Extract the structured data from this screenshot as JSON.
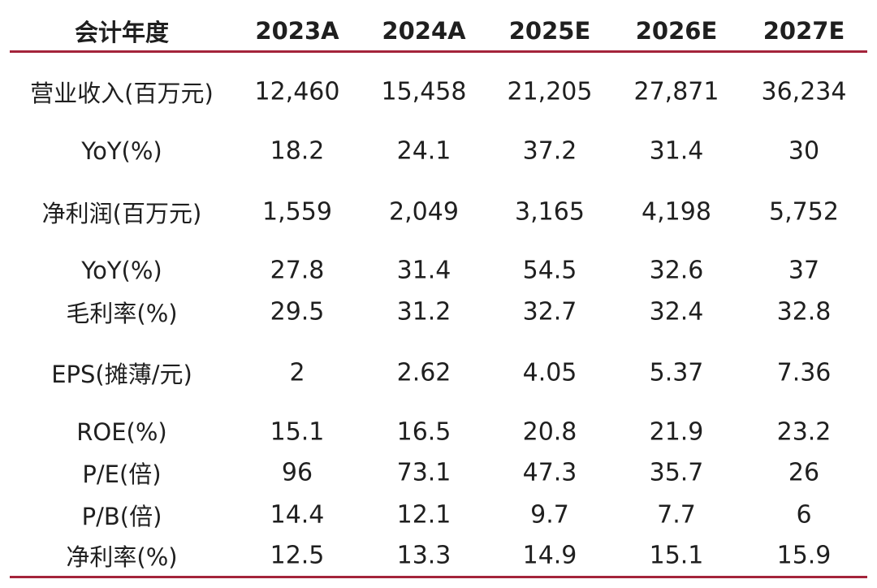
{
  "header": {
    "label": "会计年度",
    "years": [
      "2023A",
      "2024A",
      "2025E",
      "2026E",
      "2027E"
    ]
  },
  "rows": [
    {
      "label": "营业收入(百万元)",
      "values": [
        "12,460",
        "15,458",
        "21,205",
        "27,871",
        "36,234"
      ]
    },
    {
      "label": "YoY(%)",
      "values": [
        "18.2",
        "24.1",
        "37.2",
        "31.4",
        "30"
      ]
    },
    {
      "label": "净利润(百万元)",
      "values": [
        "1,559",
        "2,049",
        "3,165",
        "4,198",
        "5,752"
      ]
    },
    {
      "label": "YoY(%)",
      "values": [
        "27.8",
        "31.4",
        "54.5",
        "32.6",
        "37"
      ]
    },
    {
      "label": "毛利率(%)",
      "values": [
        "29.5",
        "31.2",
        "32.7",
        "32.4",
        "32.8"
      ]
    },
    {
      "label": "EPS(摊薄/元)",
      "values": [
        "2",
        "2.62",
        "4.05",
        "5.37",
        "7.36"
      ]
    },
    {
      "label": "ROE(%)",
      "values": [
        "15.1",
        "16.5",
        "20.8",
        "21.9",
        "23.2"
      ]
    },
    {
      "label": "P/E(倍)",
      "values": [
        "96",
        "73.1",
        "47.3",
        "35.7",
        "26"
      ]
    },
    {
      "label": "P/B(倍)",
      "values": [
        "14.4",
        "12.1",
        "9.7",
        "7.7",
        "6"
      ]
    },
    {
      "label": "净利率(%)",
      "values": [
        "12.5",
        "13.3",
        "14.9",
        "15.1",
        "15.9"
      ]
    }
  ]
}
